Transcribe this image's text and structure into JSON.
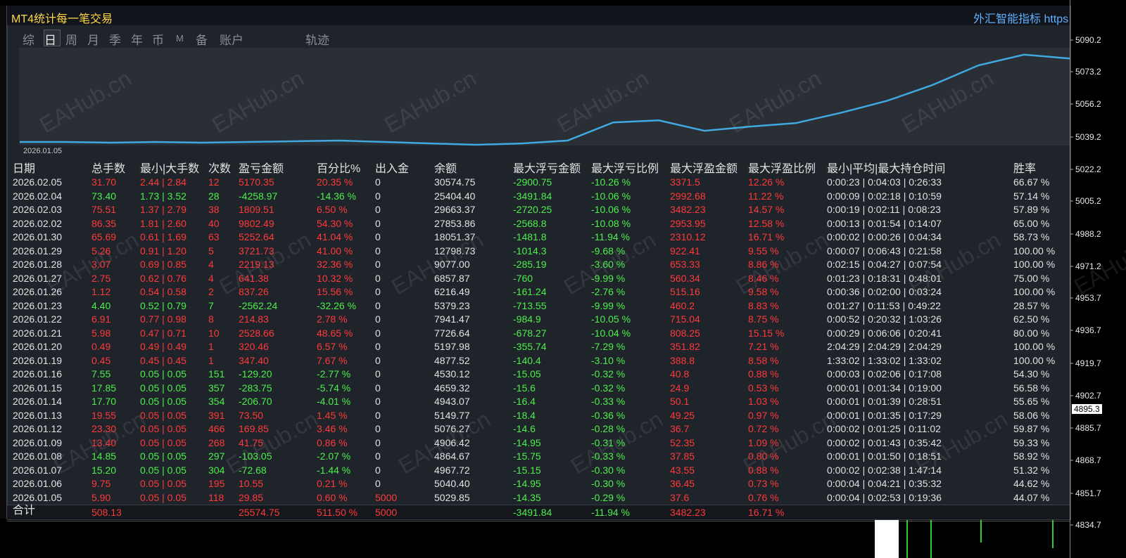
{
  "header": {
    "title": "MT4统计每一笔交易",
    "link": "外汇智能指标 https"
  },
  "tabs": [
    "综",
    "日",
    "周",
    "月",
    "季",
    "年",
    "币",
    "M",
    "备",
    "账户",
    "轨迹"
  ],
  "watermark": "EAHub.cn",
  "chart_data": {
    "type": "line",
    "start_label": "2026.01.05",
    "values": [
      3.6,
      3.6,
      2.9,
      3.6,
      2.9,
      3.6,
      4.3,
      5,
      3.6,
      2.1,
      0.7,
      2.1,
      5,
      23.6,
      25.7,
      15,
      19.3,
      22.9,
      33.6,
      45.7,
      62,
      82,
      93,
      89
    ],
    "ylim": [
      0,
      100
    ],
    "color": "#3fa9e0"
  },
  "table": {
    "columns": [
      "日期",
      "总手数",
      "最小|大手数",
      "次数",
      "盈亏金额",
      "百分比%",
      "出入金",
      "余额",
      "最大浮亏金额",
      "最大浮亏比例",
      "最大浮盈金额",
      "最大浮盈比例",
      "最小|平均|最大持仓时间",
      "胜率"
    ],
    "rows": [
      [
        "2026.02.05",
        "31.70",
        "2.44 | 2.84",
        "12",
        "5170.35",
        "20.35 %",
        "0",
        "30574.75",
        "-2900.75",
        "-10.26 %",
        "3371.5",
        "12.26 %",
        "0:00:23 | 0:04:03 | 0:26:33",
        "66.67 %"
      ],
      [
        "2026.02.04",
        "73.40",
        "1.73 | 3.52",
        "28",
        "-4258.97",
        "-14.36 %",
        "0",
        "25404.40",
        "-3491.84",
        "-10.06 %",
        "2992.68",
        "11.22 %",
        "0:00:09 | 0:02:18 | 0:10:59",
        "57.14 %"
      ],
      [
        "2026.02.03",
        "75.51",
        "1.37 | 2.79",
        "38",
        "1809.51",
        "6.50 %",
        "0",
        "29663.37",
        "-2720.25",
        "-10.06 %",
        "3482.23",
        "14.57 %",
        "0:00:19 | 0:02:11 | 0:08:23",
        "57.89 %"
      ],
      [
        "2026.02.02",
        "86.35",
        "1.81 | 2.60",
        "40",
        "9802.49",
        "54.30 %",
        "0",
        "27853.86",
        "-2568.8",
        "-10.08 %",
        "2953.95",
        "12.58 %",
        "0:00:13 | 0:01:54 | 0:14:07",
        "65.00 %"
      ],
      [
        "2026.01.30",
        "65.69",
        "0.61 | 1.69",
        "63",
        "5252.64",
        "41.04 %",
        "0",
        "18051.37",
        "-1481.8",
        "-11.94 %",
        "2310.12",
        "16.71 %",
        "0:00:02 | 0:00:26 | 0:04:34",
        "58.73 %"
      ],
      [
        "2026.01.29",
        "5.26",
        "0.91 | 1.20",
        "5",
        "3721.73",
        "41.00 %",
        "0",
        "12798.73",
        "-1014.3",
        "-9.68 %",
        "922.41",
        "9.55 %",
        "0:00:07 | 0:06:43 | 0:21:58",
        "100.00 %"
      ],
      [
        "2026.01.28",
        "3.07",
        "0.69 | 0.85",
        "4",
        "2219.13",
        "32.36 %",
        "0",
        "9077.00",
        "-285.19",
        "-3.60 %",
        "653.33",
        "8.86 %",
        "0:02:15 | 0:04:27 | 0:07:54",
        "100.00 %"
      ],
      [
        "2026.01.27",
        "2.75",
        "0.62 | 0.76",
        "4",
        "641.38",
        "10.32 %",
        "0",
        "6857.87",
        "-760",
        "-9.99 %",
        "560.34",
        "8.46 %",
        "0:01:23 | 0:18:31 | 0:48:01",
        "75.00 %"
      ],
      [
        "2026.01.26",
        "1.12",
        "0.54 | 0.58",
        "2",
        "837.26",
        "15.56 %",
        "0",
        "6216.49",
        "-161.24",
        "-2.76 %",
        "515.16",
        "9.58 %",
        "0:00:36 | 0:02:00 | 0:03:24",
        "100.00 %"
      ],
      [
        "2026.01.23",
        "4.40",
        "0.52 | 0.79",
        "7",
        "-2562.24",
        "-32.26 %",
        "0",
        "5379.23",
        "-713.55",
        "-9.99 %",
        "460.2",
        "8.83 %",
        "0:01:27 | 0:11:53 | 0:49:22",
        "28.57 %"
      ],
      [
        "2026.01.22",
        "6.91",
        "0.77 | 0.98",
        "8",
        "214.83",
        "2.78 %",
        "0",
        "7941.47",
        "-984.9",
        "-10.05 %",
        "715.04",
        "8.75 %",
        "0:00:52 | 0:20:32 | 1:03:26",
        "62.50 %"
      ],
      [
        "2026.01.21",
        "5.98",
        "0.47 | 0.71",
        "10",
        "2528.66",
        "48.65 %",
        "0",
        "7726.64",
        "-678.27",
        "-10.04 %",
        "808.25",
        "15.15 %",
        "0:00:29 | 0:06:06 | 0:20:41",
        "80.00 %"
      ],
      [
        "2026.01.20",
        "0.49",
        "0.49 | 0.49",
        "1",
        "320.46",
        "6.57 %",
        "0",
        "5197.98",
        "-355.74",
        "-7.29 %",
        "351.82",
        "7.21 %",
        "2:04:29 | 2:04:29 | 2:04:29",
        "100.00 %"
      ],
      [
        "2026.01.19",
        "0.45",
        "0.45 | 0.45",
        "1",
        "347.40",
        "7.67 %",
        "0",
        "4877.52",
        "-140.4",
        "-3.10 %",
        "388.8",
        "8.58 %",
        "1:33:02 | 1:33:02 | 1:33:02",
        "100.00 %"
      ],
      [
        "2026.01.16",
        "7.55",
        "0.05 | 0.05",
        "151",
        "-129.20",
        "-2.77 %",
        "0",
        "4530.12",
        "-15.05",
        "-0.32 %",
        "40.8",
        "0.88 %",
        "0:00:03 | 0:02:06 | 0:17:08",
        "54.30 %"
      ],
      [
        "2026.01.15",
        "17.85",
        "0.05 | 0.05",
        "357",
        "-283.75",
        "-5.74 %",
        "0",
        "4659.32",
        "-15.6",
        "-0.32 %",
        "24.9",
        "0.53 %",
        "0:00:01 | 0:01:34 | 0:19:00",
        "56.58 %"
      ],
      [
        "2026.01.14",
        "17.70",
        "0.05 | 0.05",
        "354",
        "-206.70",
        "-4.01 %",
        "0",
        "4943.07",
        "-16.4",
        "-0.33 %",
        "50.1",
        "1.03 %",
        "0:00:01 | 0:01:39 | 0:28:51",
        "55.65 %"
      ],
      [
        "2026.01.13",
        "19.55",
        "0.05 | 0.05",
        "391",
        "73.50",
        "1.45 %",
        "0",
        "5149.77",
        "-18.4",
        "-0.36 %",
        "49.25",
        "0.97 %",
        "0:00:01 | 0:01:35 | 0:17:29",
        "58.06 %"
      ],
      [
        "2026.01.12",
        "23.30",
        "0.05 | 0.05",
        "466",
        "169.85",
        "3.46 %",
        "0",
        "5076.27",
        "-14.6",
        "-0.28 %",
        "36.7",
        "0.72 %",
        "0:00:02 | 0:01:25 | 0:11:02",
        "59.87 %"
      ],
      [
        "2026.01.09",
        "13.40",
        "0.05 | 0.05",
        "268",
        "41.75",
        "0.86 %",
        "0",
        "4906.42",
        "-14.95",
        "-0.31 %",
        "52.35",
        "1.09 %",
        "0:00:02 | 0:01:43 | 0:35:42",
        "59.33 %"
      ],
      [
        "2026.01.08",
        "14.85",
        "0.05 | 0.05",
        "297",
        "-103.05",
        "-2.07 %",
        "0",
        "4864.67",
        "-15.75",
        "-0.33 %",
        "37.85",
        "0.80 %",
        "0:00:01 | 0:01:50 | 0:18:51",
        "58.92 %"
      ],
      [
        "2026.01.07",
        "15.20",
        "0.05 | 0.05",
        "304",
        "-72.68",
        "-1.44 %",
        "0",
        "4967.72",
        "-15.15",
        "-0.30 %",
        "43.55",
        "0.88 %",
        "0:00:02 | 0:02:38 | 1:47:14",
        "51.32 %"
      ],
      [
        "2026.01.06",
        "9.75",
        "0.05 | 0.05",
        "195",
        "10.55",
        "0.21 %",
        "0",
        "5040.40",
        "-14.95",
        "-0.30 %",
        "36.45",
        "0.73 %",
        "0:00:04 | 0:04:21 | 0:35:32",
        "44.62 %"
      ],
      [
        "2026.01.05",
        "5.90",
        "0.05 | 0.05",
        "118",
        "29.85",
        "0.60 %",
        "5000",
        "5029.85",
        "-14.35",
        "-0.29 %",
        "37.6",
        "0.76 %",
        "0:00:04 | 0:02:53 | 0:19:36",
        "44.07 %"
      ]
    ],
    "total": [
      "合计",
      "508.13",
      null,
      null,
      "25574.75",
      "511.50 %",
      "5000",
      null,
      "-3491.84",
      "-11.94 %",
      "3482.23",
      "16.71 %",
      null,
      null
    ]
  },
  "price_axis": {
    "labels": [
      "5090.2",
      "5073.2",
      "5056.2",
      "5039.2",
      "5022.2",
      "5005.2",
      "4988.2",
      "4971.2",
      "4953.7",
      "4936.7",
      "4919.7",
      "4902.7",
      "4885.7",
      "4868.7",
      "4851.7",
      "4834.7"
    ],
    "current": "4895.3"
  }
}
